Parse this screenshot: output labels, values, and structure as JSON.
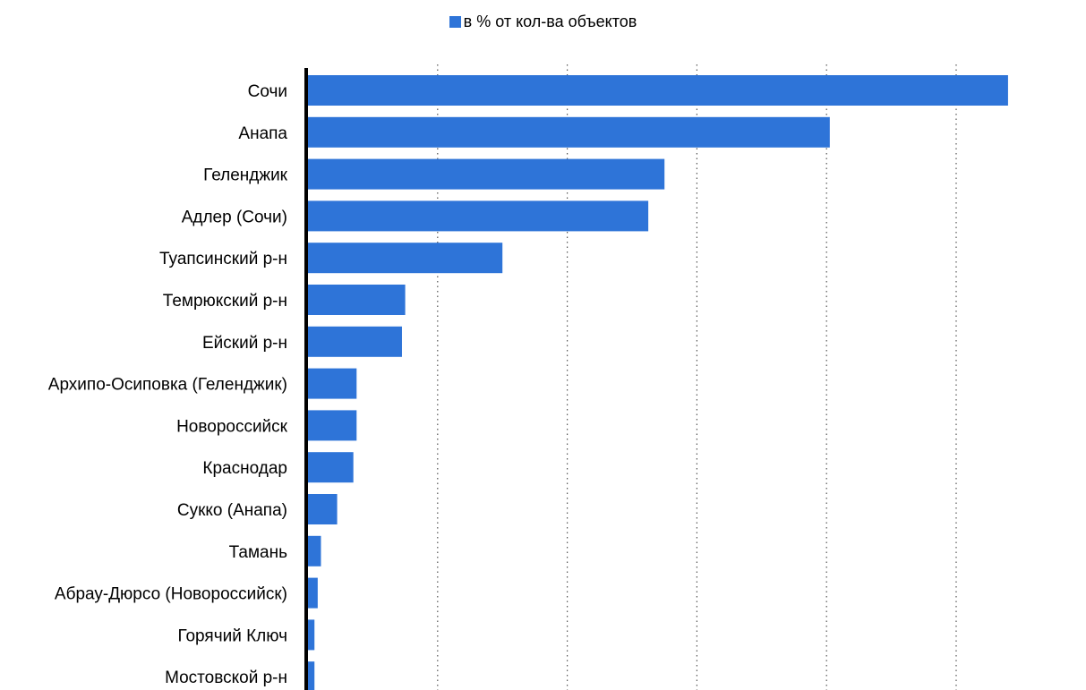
{
  "chart_data": {
    "type": "bar",
    "orientation": "horizontal",
    "legend": {
      "position": "top-center",
      "entries": [
        {
          "name": "в % от кол-ва объектов",
          "color": "#2e74d8"
        }
      ]
    },
    "categories": [
      "Сочи",
      "Анапа",
      "Геленджик",
      "Адлер (Сочи)",
      "Туапсинский р-н",
      "Темрюкский р-н",
      "Ейский р-н",
      "Архипо-Осиповка (Геленджик)",
      "Новороссийск",
      "Краснодар",
      "Сукко (Анапа)",
      "Тамань",
      "Абрау-Дюрсо (Новороссийск)",
      "Горячий Ключ",
      "Мостовской р-н"
    ],
    "series": [
      {
        "name": "в % от кол-ва объектов",
        "color": "#2e74d8",
        "values": [
          21.6,
          16.1,
          11.0,
          10.5,
          6.0,
          3.0,
          2.9,
          1.5,
          1.5,
          1.4,
          0.9,
          0.4,
          0.3,
          0.2,
          0.2
        ]
      }
    ],
    "xlim": [
      0,
      24
    ],
    "x_gridlines": [
      4,
      8,
      12,
      16,
      20
    ],
    "grid": "vertical dotted",
    "tick_labels_shown": false
  }
}
